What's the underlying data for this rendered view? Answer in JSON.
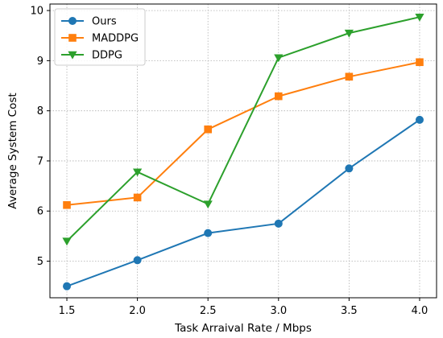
{
  "chart_data": {
    "type": "line",
    "title": "",
    "xlabel": "Task Arraival Rate / Mbps",
    "ylabel": "Average System Cost",
    "x": [
      1.5,
      2.0,
      2.5,
      3.0,
      3.5,
      4.0
    ],
    "xlim": [
      1.38,
      4.12
    ],
    "ylim": [
      4.27,
      10.13
    ],
    "xticks": [
      "1.5",
      "2.0",
      "2.5",
      "3.0",
      "3.5",
      "4.0"
    ],
    "xtick_values": [
      1.5,
      2.0,
      2.5,
      3.0,
      3.5,
      4.0
    ],
    "yticks": [
      "5",
      "6",
      "7",
      "8",
      "9",
      "10"
    ],
    "ytick_values": [
      5,
      6,
      7,
      8,
      9,
      10
    ],
    "grid": true,
    "grid_style": "dotted",
    "legend_position": "top-left",
    "series": [
      {
        "name": "Ours",
        "color": "#1f77b4",
        "marker": "circle",
        "values": [
          4.5,
          5.02,
          5.56,
          5.75,
          6.85,
          7.82
        ]
      },
      {
        "name": "MADDPG",
        "color": "#ff7f0e",
        "marker": "square",
        "values": [
          6.12,
          6.27,
          7.63,
          8.29,
          8.68,
          8.97
        ]
      },
      {
        "name": "DDPG",
        "color": "#2ca02c",
        "marker": "triangle-down",
        "values": [
          5.4,
          6.78,
          6.14,
          9.06,
          9.55,
          9.87
        ]
      }
    ]
  }
}
